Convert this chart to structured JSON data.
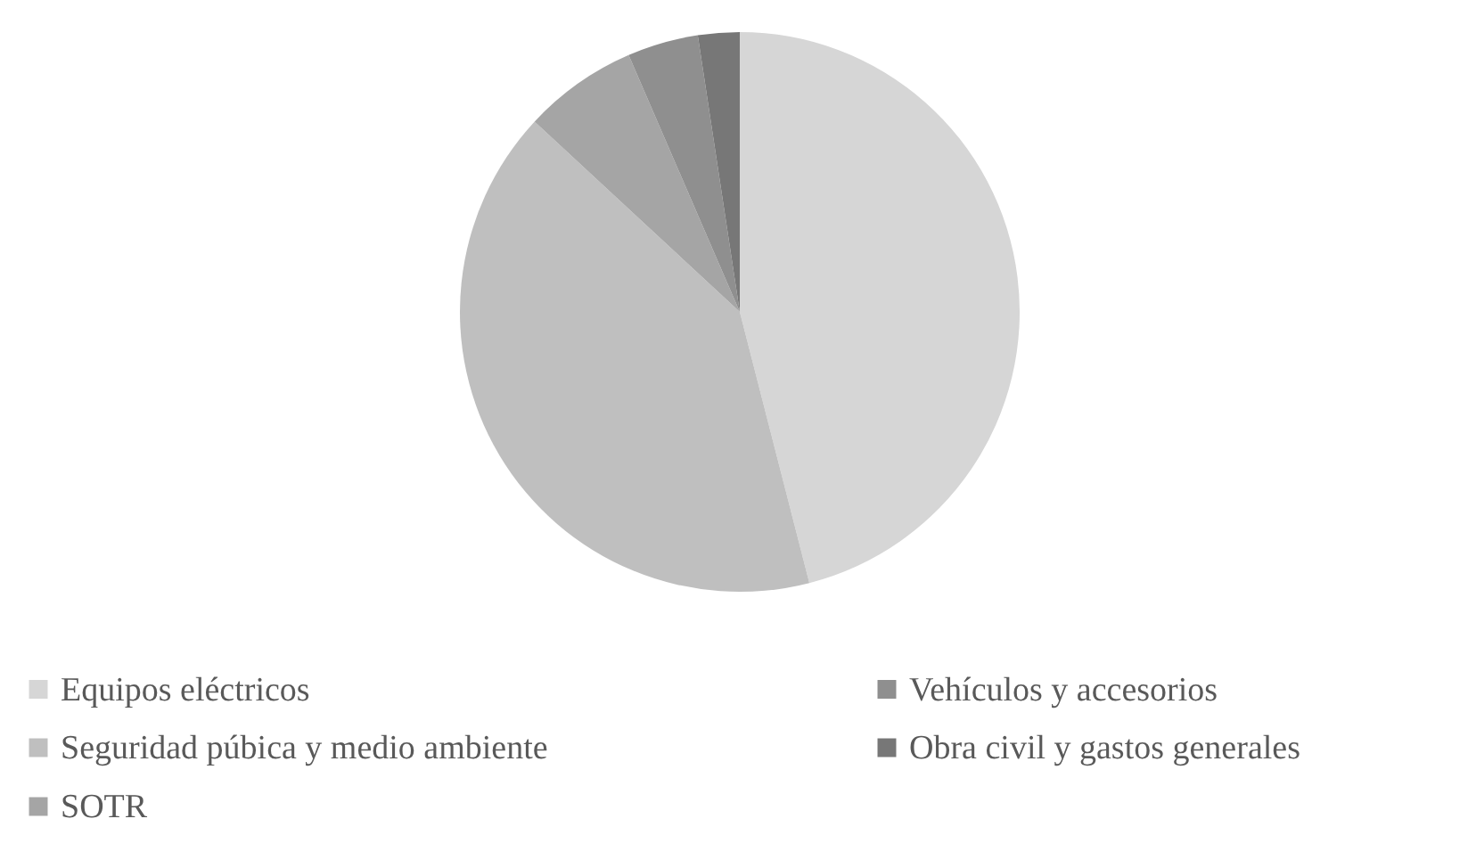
{
  "chart_data": {
    "type": "pie",
    "categories": [
      "Equipos eléctricos",
      "Seguridad púbica y medio ambiente",
      "SOTR",
      "Vehículos y accesorios",
      "Obra civil y gastos generales"
    ],
    "values": [
      46.0,
      40.9,
      6.6,
      4.1,
      2.4
    ],
    "colors": [
      "#d6d6d6",
      "#bfbfbf",
      "#a5a5a5",
      "#8f8f8f",
      "#777777"
    ],
    "legend": "bottom"
  }
}
